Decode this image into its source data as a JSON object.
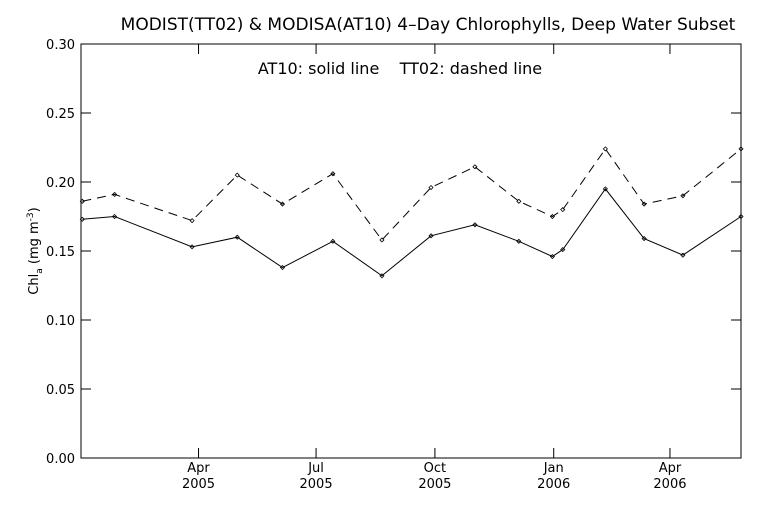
{
  "chart_data": {
    "type": "line",
    "title": "MODIST(TT02) & MODISA(AT10) 4–Day Chlorophylls, Deep Water Subset",
    "annotation": "AT10: solid line    TT02: dashed line",
    "ylabel": "Chl",
    "ylabel_sub": "a",
    "ylabel_units_open": " (mg m",
    "ylabel_units_sup": "-3",
    "ylabel_units_close": ")",
    "ylim": [
      0.0,
      0.3
    ],
    "yticks": [
      "0.00",
      "0.05",
      "0.10",
      "0.15",
      "0.20",
      "0.25",
      "0.30"
    ],
    "xlim": [
      "2004-12-31",
      "2006-05-26"
    ],
    "xticks": [
      {
        "date": "2005-04-01",
        "month": "Apr",
        "year": "2005"
      },
      {
        "date": "2005-07-01",
        "month": "Jul",
        "year": "2005"
      },
      {
        "date": "2005-10-01",
        "month": "Oct",
        "year": "2005"
      },
      {
        "date": "2006-01-01",
        "month": "Jan",
        "year": "2006"
      },
      {
        "date": "2006-04-01",
        "month": "Apr",
        "year": "2006"
      }
    ],
    "grid": false,
    "series": [
      {
        "name": "AT10",
        "style": "solid",
        "points": [
          {
            "x": "2005-01-01",
            "y": 0.173
          },
          {
            "x": "2005-01-26",
            "y": 0.175
          },
          {
            "x": "2005-03-27",
            "y": 0.153
          },
          {
            "x": "2005-05-01",
            "y": 0.16
          },
          {
            "x": "2005-06-05",
            "y": 0.138
          },
          {
            "x": "2005-07-14",
            "y": 0.157
          },
          {
            "x": "2005-08-21",
            "y": 0.132
          },
          {
            "x": "2005-09-28",
            "y": 0.161
          },
          {
            "x": "2005-11-01",
            "y": 0.169
          },
          {
            "x": "2005-12-05",
            "y": 0.157
          },
          {
            "x": "2005-12-31",
            "y": 0.146
          },
          {
            "x": "2006-01-08",
            "y": 0.151
          },
          {
            "x": "2006-02-10",
            "y": 0.195
          },
          {
            "x": "2006-03-12",
            "y": 0.159
          },
          {
            "x": "2006-04-11",
            "y": 0.147
          },
          {
            "x": "2006-05-26",
            "y": 0.175
          }
        ]
      },
      {
        "name": "TT02",
        "style": "dashed",
        "points": [
          {
            "x": "2005-01-01",
            "y": 0.186
          },
          {
            "x": "2005-01-26",
            "y": 0.191
          },
          {
            "x": "2005-03-27",
            "y": 0.172
          },
          {
            "x": "2005-05-01",
            "y": 0.205
          },
          {
            "x": "2005-06-05",
            "y": 0.184
          },
          {
            "x": "2005-07-14",
            "y": 0.206
          },
          {
            "x": "2005-08-21",
            "y": 0.158
          },
          {
            "x": "2005-09-28",
            "y": 0.196
          },
          {
            "x": "2005-11-01",
            "y": 0.211
          },
          {
            "x": "2005-12-05",
            "y": 0.186
          },
          {
            "x": "2005-12-31",
            "y": 0.175
          },
          {
            "x": "2006-01-08",
            "y": 0.18
          },
          {
            "x": "2006-02-10",
            "y": 0.224
          },
          {
            "x": "2006-03-12",
            "y": 0.184
          },
          {
            "x": "2006-04-11",
            "y": 0.19
          },
          {
            "x": "2006-05-26",
            "y": 0.224
          }
        ]
      }
    ]
  }
}
